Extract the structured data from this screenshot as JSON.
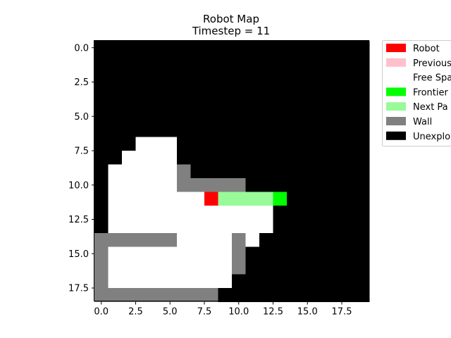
{
  "chart_data": {
    "type": "heatmap",
    "title": "Robot Map",
    "subtitle": "Timestep = 11",
    "xlabel": "",
    "ylabel": "",
    "grid": false,
    "legend_placement": "outside-top-right",
    "grid_cols": 20,
    "grid_rows": 19,
    "x_ticks": [
      {
        "value": 0,
        "label": "0.0"
      },
      {
        "value": 2.5,
        "label": "2.5"
      },
      {
        "value": 5,
        "label": "5.0"
      },
      {
        "value": 7.5,
        "label": "7.5"
      },
      {
        "value": 10,
        "label": "10.0"
      },
      {
        "value": 12.5,
        "label": "12.5"
      },
      {
        "value": 15,
        "label": "15.0"
      },
      {
        "value": 17.5,
        "label": "17.5"
      }
    ],
    "y_ticks": [
      {
        "value": 0,
        "label": "0.0"
      },
      {
        "value": 2.5,
        "label": "2.5"
      },
      {
        "value": 5,
        "label": "5.0"
      },
      {
        "value": 7.5,
        "label": "7.5"
      },
      {
        "value": 10,
        "label": "10.0"
      },
      {
        "value": 12.5,
        "label": "12.5"
      },
      {
        "value": 15,
        "label": "15.0"
      },
      {
        "value": 17.5,
        "label": "17.5"
      }
    ],
    "legend": [
      {
        "label": "Robot",
        "code": "R",
        "color": "#ff0000"
      },
      {
        "label": "Previous",
        "code": "P",
        "color": "#ffc0cb"
      },
      {
        "label": "Free Spa",
        "code": "F",
        "color": "#ffffff"
      },
      {
        "label": "Frontier",
        "code": "T",
        "color": "#00ff00"
      },
      {
        "label": "Next Pa",
        "code": "N",
        "color": "#98fb98"
      },
      {
        "label": "Wall",
        "code": "W",
        "color": "#808080"
      },
      {
        "label": "Unexplo",
        "code": "U",
        "color": "#000000"
      }
    ],
    "grid_cells": [
      "UUUUUUUUUUUUUUUUUUUU",
      "UUUUUUUUUUUUUUUUUUUU",
      "UUUUUUUUUUUUUUUUUUUU",
      "UUUUUUUUUUUUUUUUUUUU",
      "UUUUUUUUUUUUUUUUUUUU",
      "UUUUUUUUUUUUUUUUUUUU",
      "UUUUUUUUUUUUUUUUUUUU",
      "UUUFFFUUUUUUUUUUUUUU",
      "UUFFFFUUUUUUUUUUUUUU",
      "UFFFFFWUUUUUUUUUUUUU",
      "UFFFFFWWWWWUUUUUUUUU",
      "UFFFFFFFRNNNNTUUUUUU",
      "UFFFFFFFFFFFFUUUUUUU",
      "UFFFFFFFFFFFFUUUUUUU",
      "WWWWWWFFFFWFUUUUUUUU",
      "WFFFFFFFFFWUUUUUUUUU",
      "WFFFFFFFFFWUUUUUUUUU",
      "WFFFFFFFFFUUUUUUUUUU",
      "WWWWWWWWWUUUUUUUUUUU"
    ]
  }
}
